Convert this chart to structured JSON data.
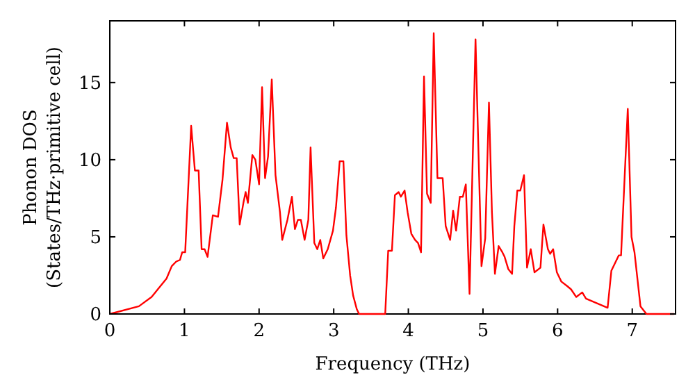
{
  "chart_data": {
    "type": "line",
    "xlabel": "Frequency (THz)",
    "ylabel": "Phonon DOS\n(States/THz·primitive cell)",
    "xlim": [
      0,
      7.58
    ],
    "ylim": [
      0,
      19
    ],
    "xticks": [
      0,
      1,
      2,
      3,
      4,
      5,
      6,
      7
    ],
    "yticks": [
      0,
      5,
      10,
      15
    ],
    "grid": false,
    "marker": "none",
    "line_style": "solid",
    "series": [
      {
        "color": "#ff0000",
        "x": [
          0,
          0.39,
          0.56,
          0.76,
          0.83,
          0.89,
          0.94,
          0.97,
          1.01,
          1.09,
          1.14,
          1.19,
          1.23,
          1.27,
          1.31,
          1.38,
          1.45,
          1.51,
          1.57,
          1.62,
          1.66,
          1.7,
          1.74,
          1.79,
          1.82,
          1.85,
          1.91,
          1.95,
          2.0,
          2.04,
          2.08,
          2.12,
          2.17,
          2.22,
          2.28,
          2.31,
          2.38,
          2.44,
          2.48,
          2.52,
          2.56,
          2.61,
          2.66,
          2.69,
          2.74,
          2.78,
          2.82,
          2.86,
          2.92,
          2.99,
          3.03,
          3.08,
          3.13,
          3.17,
          3.22,
          3.26,
          3.31,
          3.34,
          3.69,
          3.73,
          3.78,
          3.82,
          3.87,
          3.9,
          3.95,
          3.99,
          4.04,
          4.09,
          4.13,
          4.17,
          4.21,
          4.25,
          4.3,
          4.34,
          4.39,
          4.46,
          4.5,
          4.56,
          4.6,
          4.64,
          4.69,
          4.73,
          4.77,
          4.82,
          4.9,
          4.98,
          5.03,
          5.08,
          5.12,
          5.16,
          5.21,
          5.26,
          5.29,
          5.34,
          5.39,
          5.42,
          5.46,
          5.5,
          5.55,
          5.59,
          5.64,
          5.69,
          5.77,
          5.81,
          5.87,
          5.9,
          5.94,
          5.99,
          6.05,
          6.13,
          6.18,
          6.25,
          6.33,
          6.38,
          6.67,
          6.72,
          6.82,
          6.85,
          6.94,
          6.99,
          7.03,
          7.11,
          7.19,
          7.56
        ],
        "values": [
          0,
          0.5,
          1.1,
          2.3,
          3.1,
          3.4,
          3.5,
          4.0,
          4.0,
          12.2,
          9.3,
          9.3,
          4.2,
          4.2,
          3.7,
          6.4,
          6.3,
          8.7,
          12.4,
          10.8,
          10.1,
          10.1,
          5.8,
          7.2,
          7.9,
          7.2,
          10.3,
          10.0,
          8.4,
          14.7,
          8.8,
          10.2,
          15.2,
          9.0,
          6.6,
          4.8,
          6.1,
          7.6,
          5.5,
          6.1,
          6.1,
          4.8,
          6.1,
          10.8,
          4.6,
          4.2,
          4.8,
          3.6,
          4.2,
          5.4,
          6.9,
          9.9,
          9.9,
          5.1,
          2.5,
          1.2,
          0.3,
          0,
          0,
          4.1,
          4.1,
          7.7,
          7.9,
          7.6,
          8.0,
          6.6,
          5.2,
          4.8,
          4.6,
          4.0,
          15.4,
          7.8,
          7.2,
          18.2,
          8.8,
          8.8,
          5.7,
          4.8,
          6.7,
          5.4,
          7.6,
          7.6,
          8.4,
          1.3,
          17.8,
          3.1,
          4.9,
          13.7,
          6.6,
          2.6,
          4.4,
          4.0,
          3.7,
          2.9,
          2.6,
          5.7,
          8.0,
          8.0,
          9.0,
          3.0,
          4.2,
          2.7,
          3.0,
          5.8,
          4.2,
          3.9,
          4.2,
          2.7,
          2.1,
          1.8,
          1.6,
          1.1,
          1.4,
          1.0,
          0.4,
          2.8,
          3.8,
          3.8,
          13.3,
          5.0,
          4.0,
          0.5,
          0,
          0
        ]
      }
    ]
  }
}
